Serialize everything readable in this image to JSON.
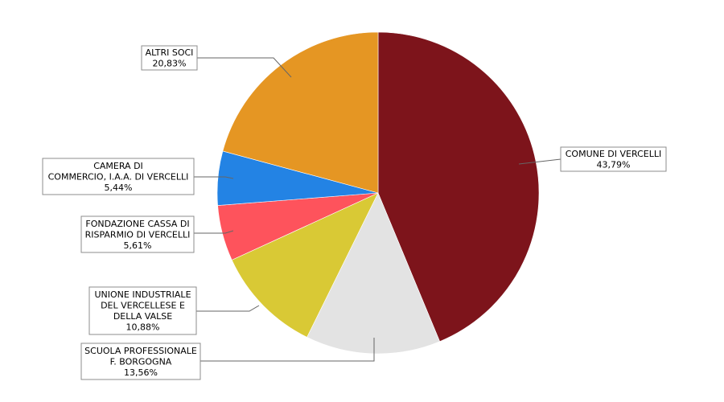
{
  "chart_data": {
    "type": "pie",
    "start": "top",
    "direction": "clockwise",
    "legend": "none",
    "slices": [
      {
        "name": "COMUNE DI VERCELLI",
        "value": 43.79,
        "label_lines": [
          "COMUNE DI VERCELLI",
          "43,79%"
        ],
        "color": "#7d141b"
      },
      {
        "name": "SCUOLA PROFESSIONALE F. BORGOGNA",
        "value": 13.56,
        "label_lines": [
          "SCUOLA PROFESSIONALE",
          "F. BORGOGNA",
          "13,56%"
        ],
        "color": "#e3e3e3"
      },
      {
        "name": "UNIONE INDUSTRIALE DEL VERCELLESE E DELLA VALSE",
        "value": 10.88,
        "label_lines": [
          "UNIONE INDUSTRIALE",
          "DEL VERCELLESE E",
          "DELLA VALSE",
          "10,88%"
        ],
        "color": "#d9c935"
      },
      {
        "name": "FONDAZIONE CASSA DI RISPARMIO DI VERCELLI",
        "value": 5.61,
        "label_lines": [
          "FONDAZIONE CASSA DI",
          "RISPARMIO DI VERCELLI",
          "5,61%"
        ],
        "color": "#fe535c"
      },
      {
        "name": "CAMERA DI COMMERCIO, I.A.A. DI VERCELLI",
        "value": 5.44,
        "label_lines": [
          "CAMERA DI",
          "COMMERCIO, I.A.A. DI VERCELLI",
          "5,44%"
        ],
        "color": "#2383e4"
      },
      {
        "name": "ALTRI SOCI",
        "value": 20.83,
        "label_lines": [
          "ALTRI SOCI",
          "20,83%"
        ],
        "color": "#e59623"
      }
    ]
  }
}
